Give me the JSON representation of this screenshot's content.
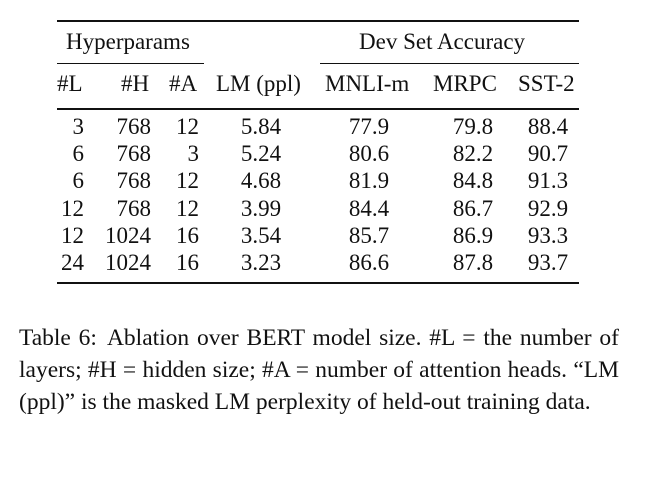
{
  "table": {
    "group_headers": [
      "Hyperparams",
      "Dev Set Accuracy"
    ],
    "columns": [
      "#L",
      "#H",
      "#A",
      "LM (ppl)",
      "MNLI-m",
      "MRPC",
      "SST-2"
    ],
    "rows": [
      [
        "3",
        "768",
        "12",
        "5.84",
        "77.9",
        "79.8",
        "88.4"
      ],
      [
        "6",
        "768",
        "3",
        "5.24",
        "80.6",
        "82.2",
        "90.7"
      ],
      [
        "6",
        "768",
        "12",
        "4.68",
        "81.9",
        "84.8",
        "91.3"
      ],
      [
        "12",
        "768",
        "12",
        "3.99",
        "84.4",
        "86.7",
        "92.9"
      ],
      [
        "12",
        "1024",
        "16",
        "3.54",
        "85.7",
        "86.9",
        "93.3"
      ],
      [
        "24",
        "1024",
        "16",
        "3.23",
        "86.6",
        "87.8",
        "93.7"
      ]
    ]
  },
  "caption": {
    "label": "Table 6:",
    "text": "Ablation over BERT model size. #L = the number of layers; #H = hidden size; #A = number of attention heads. “LM (ppl)” is the masked LM perplexity of held-out training data."
  }
}
